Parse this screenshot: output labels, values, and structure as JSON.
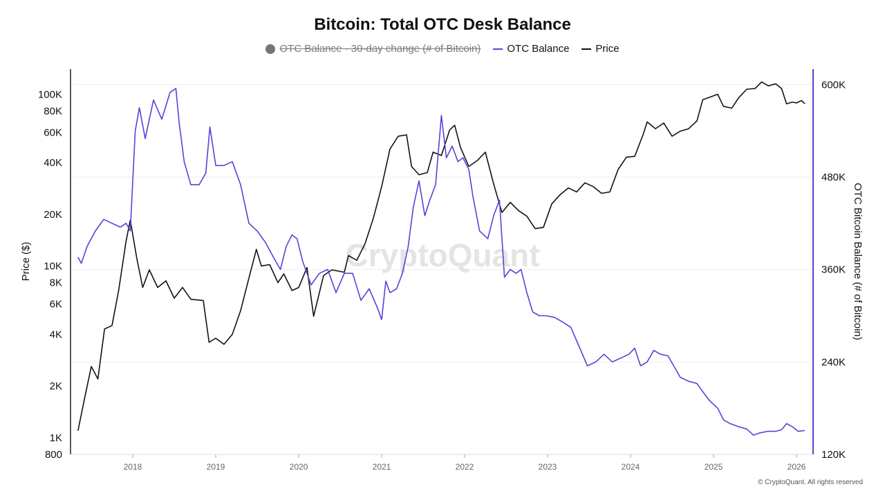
{
  "chart_data": {
    "type": "line",
    "title": "Bitcoin: Total OTC Desk Balance",
    "legend": [
      {
        "name": "OTC Balance - 30-day change (# of Bitcoin)",
        "color": "#757575",
        "hidden": true,
        "marker": "dot"
      },
      {
        "name": "OTC Balance",
        "color": "#5b3fd6",
        "marker": "line"
      },
      {
        "name": "Price",
        "color": "#111111",
        "marker": "line"
      }
    ],
    "ylabel_left": "Price ($)",
    "ylabel_right": "OTC Bitcoin Balance (# of Bitcoin)",
    "x_ticks": [
      "2018",
      "2019",
      "2020",
      "2021",
      "2022",
      "2023",
      "2024",
      "2025",
      "2026"
    ],
    "xlim": [
      2017.25,
      2026.2
    ],
    "left_axis": {
      "scale": "log",
      "ylim": [
        800,
        140000
      ],
      "ticks": [
        {
          "v": 1000,
          "label": "1K"
        },
        {
          "v": 2000,
          "label": "2K"
        },
        {
          "v": 4000,
          "label": "4K"
        },
        {
          "v": 6000,
          "label": "6K"
        },
        {
          "v": 8000,
          "label": "8K"
        },
        {
          "v": 10000,
          "label": "10K"
        },
        {
          "v": 20000,
          "label": "20K"
        },
        {
          "v": 40000,
          "label": "40K"
        },
        {
          "v": 60000,
          "label": "60K"
        },
        {
          "v": 80000,
          "label": "80K"
        },
        {
          "v": 100000,
          "label": "100K"
        },
        {
          "v": 800,
          "label": "800"
        }
      ]
    },
    "right_axis": {
      "scale": "linear",
      "ylim": [
        120000,
        620000
      ],
      "ticks": [
        {
          "v": 120000,
          "label": "120K"
        },
        {
          "v": 240000,
          "label": "240K"
        },
        {
          "v": 360000,
          "label": "360K"
        },
        {
          "v": 480000,
          "label": "480K"
        },
        {
          "v": 600000,
          "label": "600K"
        }
      ]
    },
    "series": [
      {
        "name": "Price",
        "axis": "left",
        "color": "#111111",
        "points": [
          [
            2017.34,
            1100
          ],
          [
            2017.42,
            1700
          ],
          [
            2017.5,
            2600
          ],
          [
            2017.58,
            2200
          ],
          [
            2017.66,
            4300
          ],
          [
            2017.75,
            4500
          ],
          [
            2017.83,
            7200
          ],
          [
            2017.92,
            14000
          ],
          [
            2017.97,
            18500
          ],
          [
            2018.05,
            11000
          ],
          [
            2018.12,
            7500
          ],
          [
            2018.2,
            9500
          ],
          [
            2018.3,
            7500
          ],
          [
            2018.4,
            8200
          ],
          [
            2018.5,
            6500
          ],
          [
            2018.6,
            7500
          ],
          [
            2018.7,
            6400
          ],
          [
            2018.85,
            6300
          ],
          [
            2018.92,
            3600
          ],
          [
            2019.0,
            3800
          ],
          [
            2019.1,
            3500
          ],
          [
            2019.2,
            4000
          ],
          [
            2019.3,
            5500
          ],
          [
            2019.4,
            8500
          ],
          [
            2019.49,
            12500
          ],
          [
            2019.55,
            10000
          ],
          [
            2019.65,
            10200
          ],
          [
            2019.75,
            8000
          ],
          [
            2019.82,
            9000
          ],
          [
            2019.92,
            7200
          ],
          [
            2020.0,
            7500
          ],
          [
            2020.1,
            9800
          ],
          [
            2020.18,
            5100
          ],
          [
            2020.3,
            8800
          ],
          [
            2020.4,
            9500
          ],
          [
            2020.55,
            9200
          ],
          [
            2020.6,
            11500
          ],
          [
            2020.7,
            10800
          ],
          [
            2020.8,
            13500
          ],
          [
            2020.9,
            19000
          ],
          [
            2021.0,
            29000
          ],
          [
            2021.1,
            48000
          ],
          [
            2021.2,
            57000
          ],
          [
            2021.3,
            58000
          ],
          [
            2021.36,
            38000
          ],
          [
            2021.45,
            34000
          ],
          [
            2021.55,
            35000
          ],
          [
            2021.62,
            46000
          ],
          [
            2021.72,
            44000
          ],
          [
            2021.82,
            62000
          ],
          [
            2021.88,
            66000
          ],
          [
            2021.95,
            49000
          ],
          [
            2022.05,
            38000
          ],
          [
            2022.15,
            41000
          ],
          [
            2022.25,
            46000
          ],
          [
            2022.35,
            30000
          ],
          [
            2022.45,
            20500
          ],
          [
            2022.55,
            23500
          ],
          [
            2022.65,
            21000
          ],
          [
            2022.75,
            19500
          ],
          [
            2022.85,
            16500
          ],
          [
            2022.95,
            16800
          ],
          [
            2023.05,
            23000
          ],
          [
            2023.15,
            26000
          ],
          [
            2023.25,
            28500
          ],
          [
            2023.35,
            27000
          ],
          [
            2023.45,
            30500
          ],
          [
            2023.55,
            29000
          ],
          [
            2023.65,
            26500
          ],
          [
            2023.75,
            27000
          ],
          [
            2023.85,
            36500
          ],
          [
            2023.95,
            43000
          ],
          [
            2024.05,
            43500
          ],
          [
            2024.15,
            58000
          ],
          [
            2024.2,
            69000
          ],
          [
            2024.3,
            63000
          ],
          [
            2024.4,
            68000
          ],
          [
            2024.5,
            57000
          ],
          [
            2024.6,
            61000
          ],
          [
            2024.7,
            63000
          ],
          [
            2024.8,
            70000
          ],
          [
            2024.87,
            93000
          ],
          [
            2024.95,
            96000
          ],
          [
            2025.05,
            100000
          ],
          [
            2025.12,
            85000
          ],
          [
            2025.22,
            83000
          ],
          [
            2025.3,
            95000
          ],
          [
            2025.4,
            107000
          ],
          [
            2025.5,
            108000
          ],
          [
            2025.58,
            118000
          ],
          [
            2025.66,
            112000
          ],
          [
            2025.75,
            115000
          ],
          [
            2025.82,
            108000
          ],
          [
            2025.88,
            88000
          ],
          [
            2025.95,
            90000
          ],
          [
            2026.0,
            89000
          ],
          [
            2026.06,
            92000
          ],
          [
            2026.1,
            88000
          ]
        ]
      },
      {
        "name": "OTC Balance",
        "axis": "right",
        "color": "#5b3fd6",
        "points": [
          [
            2017.34,
            376000
          ],
          [
            2017.38,
            368000
          ],
          [
            2017.45,
            390000
          ],
          [
            2017.55,
            410000
          ],
          [
            2017.65,
            425000
          ],
          [
            2017.75,
            420000
          ],
          [
            2017.85,
            415000
          ],
          [
            2017.92,
            420000
          ],
          [
            2017.97,
            410000
          ],
          [
            2018.03,
            540000
          ],
          [
            2018.08,
            570000
          ],
          [
            2018.15,
            530000
          ],
          [
            2018.25,
            580000
          ],
          [
            2018.35,
            555000
          ],
          [
            2018.45,
            590000
          ],
          [
            2018.52,
            595000
          ],
          [
            2018.56,
            550000
          ],
          [
            2018.62,
            500000
          ],
          [
            2018.7,
            470000
          ],
          [
            2018.8,
            470000
          ],
          [
            2018.88,
            485000
          ],
          [
            2018.93,
            545000
          ],
          [
            2019.0,
            495000
          ],
          [
            2019.1,
            495000
          ],
          [
            2019.2,
            500000
          ],
          [
            2019.3,
            470000
          ],
          [
            2019.4,
            420000
          ],
          [
            2019.5,
            410000
          ],
          [
            2019.6,
            395000
          ],
          [
            2019.7,
            375000
          ],
          [
            2019.78,
            360000
          ],
          [
            2019.85,
            390000
          ],
          [
            2019.92,
            405000
          ],
          [
            2019.98,
            400000
          ],
          [
            2020.05,
            370000
          ],
          [
            2020.15,
            340000
          ],
          [
            2020.25,
            355000
          ],
          [
            2020.35,
            360000
          ],
          [
            2020.45,
            330000
          ],
          [
            2020.55,
            355000
          ],
          [
            2020.65,
            355000
          ],
          [
            2020.75,
            320000
          ],
          [
            2020.85,
            335000
          ],
          [
            2020.95,
            310000
          ],
          [
            2021.0,
            295000
          ],
          [
            2021.05,
            345000
          ],
          [
            2021.1,
            330000
          ],
          [
            2021.18,
            335000
          ],
          [
            2021.25,
            355000
          ],
          [
            2021.32,
            390000
          ],
          [
            2021.38,
            440000
          ],
          [
            2021.45,
            475000
          ],
          [
            2021.52,
            430000
          ],
          [
            2021.58,
            450000
          ],
          [
            2021.65,
            470000
          ],
          [
            2021.72,
            560000
          ],
          [
            2021.78,
            505000
          ],
          [
            2021.85,
            520000
          ],
          [
            2021.92,
            500000
          ],
          [
            2021.98,
            505000
          ],
          [
            2022.05,
            490000
          ],
          [
            2022.1,
            455000
          ],
          [
            2022.18,
            410000
          ],
          [
            2022.28,
            400000
          ],
          [
            2022.35,
            430000
          ],
          [
            2022.42,
            450000
          ],
          [
            2022.48,
            350000
          ],
          [
            2022.55,
            360000
          ],
          [
            2022.62,
            355000
          ],
          [
            2022.68,
            360000
          ],
          [
            2022.75,
            330000
          ],
          [
            2022.82,
            305000
          ],
          [
            2022.9,
            300000
          ],
          [
            2022.98,
            300000
          ],
          [
            2023.08,
            298000
          ],
          [
            2023.18,
            292000
          ],
          [
            2023.28,
            285000
          ],
          [
            2023.38,
            260000
          ],
          [
            2023.48,
            235000
          ],
          [
            2023.58,
            240000
          ],
          [
            2023.68,
            250000
          ],
          [
            2023.78,
            240000
          ],
          [
            2023.88,
            245000
          ],
          [
            2023.98,
            250000
          ],
          [
            2024.05,
            258000
          ],
          [
            2024.12,
            235000
          ],
          [
            2024.2,
            240000
          ],
          [
            2024.28,
            255000
          ],
          [
            2024.36,
            250000
          ],
          [
            2024.45,
            248000
          ],
          [
            2024.52,
            235000
          ],
          [
            2024.6,
            220000
          ],
          [
            2024.7,
            215000
          ],
          [
            2024.8,
            212000
          ],
          [
            2024.88,
            200000
          ],
          [
            2024.95,
            190000
          ],
          [
            2025.05,
            180000
          ],
          [
            2025.12,
            165000
          ],
          [
            2025.2,
            160000
          ],
          [
            2025.3,
            156000
          ],
          [
            2025.4,
            153000
          ],
          [
            2025.48,
            145000
          ],
          [
            2025.56,
            148000
          ],
          [
            2025.65,
            150000
          ],
          [
            2025.75,
            150000
          ],
          [
            2025.82,
            152000
          ],
          [
            2025.88,
            160000
          ],
          [
            2025.95,
            156000
          ],
          [
            2026.02,
            150000
          ],
          [
            2026.1,
            151000
          ]
        ]
      }
    ]
  },
  "watermark": "CryptoQuant",
  "copyright": "© CryptoQuant. All rights reserved"
}
